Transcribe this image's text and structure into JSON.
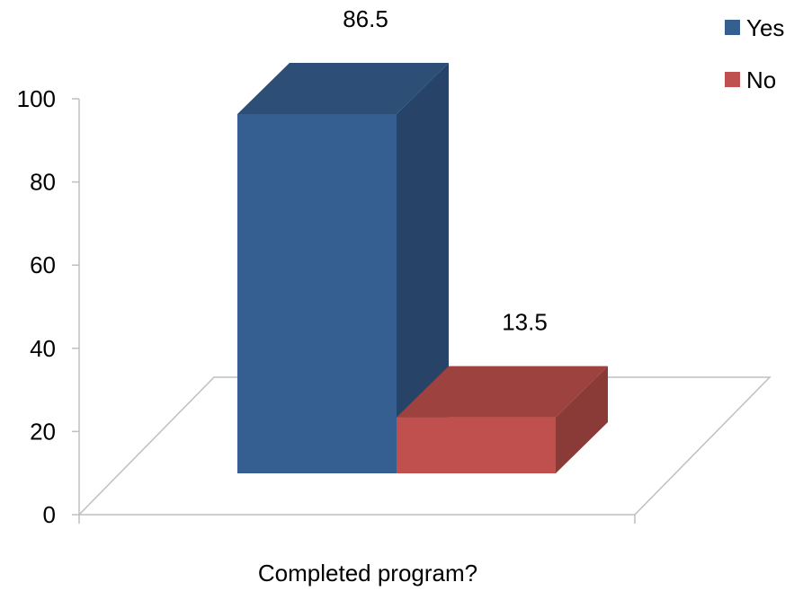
{
  "chart_data": {
    "type": "bar",
    "categories": [
      "Completed program?"
    ],
    "series": [
      {
        "name": "Yes",
        "values": [
          86.5
        ],
        "color": "#365F91"
      },
      {
        "name": "No",
        "values": [
          13.5
        ],
        "color": "#C0504D"
      }
    ],
    "xlabel": "Completed program?",
    "ylabel": "",
    "ylim": [
      0,
      100
    ],
    "yticks": [
      0,
      20,
      40,
      60,
      80,
      100
    ],
    "data_labels": [
      "86.5",
      "13.5"
    ],
    "legend_placement": "top-right",
    "grid": false,
    "three_d": true
  }
}
